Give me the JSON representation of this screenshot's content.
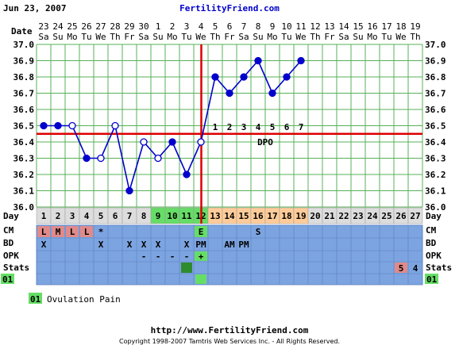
{
  "header": {
    "date": "Jun 23, 2007",
    "site": "FertilityFriend.com"
  },
  "footer": {
    "url": "http://www.FertilityFriend.com",
    "copyright": "Copyright 1998-2007 Tamtris Web Services Inc. - All Rights Reserved."
  },
  "legend": {
    "code": "01",
    "label": "Ovulation Pain"
  },
  "row_labels": {
    "date": "Date",
    "day": "Day",
    "cm": "CM",
    "bd": "BD",
    "opk": "OPK",
    "stats": "Stats",
    "code": "01"
  },
  "colors": {
    "accent_blue": "#0000cc",
    "coverline_red": "#dd0000",
    "row_blue": "#7ca4e0",
    "grid_green": "#57b157",
    "fertile_green": "#66dd66",
    "luteal_orange": "#ffcc99",
    "cm_red": "#e08a8a",
    "stats_red": "#e08a8a",
    "day_gray": "#dddddd"
  },
  "chart_data": {
    "type": "line",
    "ylim": [
      36.0,
      37.0
    ],
    "yticks": [
      "36.0",
      "36.1",
      "36.2",
      "36.3",
      "36.4",
      "36.5",
      "36.6",
      "36.7",
      "36.8",
      "36.9",
      "37.0"
    ],
    "dates": [
      "23",
      "24",
      "25",
      "26",
      "27",
      "28",
      "29",
      "30",
      "1",
      "2",
      "3",
      "4",
      "5",
      "6",
      "7",
      "8",
      "9",
      "10",
      "11",
      "12",
      "13",
      "14",
      "15",
      "16",
      "17",
      "18",
      "19"
    ],
    "weekdays": [
      "Sa",
      "Su",
      "Mo",
      "Tu",
      "We",
      "Th",
      "Fr",
      "Sa",
      "Su",
      "Mo",
      "Tu",
      "We",
      "Th",
      "Fr",
      "Sa",
      "Su",
      "Mo",
      "Tu",
      "We",
      "Th",
      "Fr",
      "Sa",
      "Su",
      "Mo",
      "Tu",
      "We",
      "Th"
    ],
    "days": [
      1,
      2,
      3,
      4,
      5,
      6,
      7,
      8,
      9,
      10,
      11,
      12,
      13,
      14,
      15,
      16,
      17,
      18,
      19,
      20,
      21,
      22,
      23,
      24,
      25,
      26,
      27
    ],
    "temps": [
      36.5,
      36.5,
      36.5,
      36.3,
      36.3,
      36.5,
      36.1,
      36.4,
      36.3,
      36.4,
      36.2,
      36.4,
      36.8,
      36.7,
      36.8,
      36.9,
      36.7,
      36.8,
      36.9
    ],
    "open_points": [
      3,
      5,
      6,
      8,
      9,
      12
    ],
    "coverline": 36.45,
    "ovulation_day": 12,
    "dpo_labels": [
      "1",
      "2",
      "3",
      "4",
      "5",
      "6",
      "7"
    ],
    "dpo_text": "DPO",
    "fertile_days": [
      9,
      10,
      11,
      12
    ],
    "luteal_days": [
      13,
      14,
      15,
      16,
      17,
      18,
      19
    ],
    "cm": [
      {
        "day": 1,
        "label": "L",
        "highlight": true
      },
      {
        "day": 2,
        "label": "M",
        "highlight": true
      },
      {
        "day": 3,
        "label": "L",
        "highlight": true
      },
      {
        "day": 4,
        "label": "L",
        "highlight": true
      },
      {
        "day": 5,
        "label": "*",
        "highlight": false
      },
      {
        "day": 12,
        "label": "E",
        "highlight": false,
        "green": true
      },
      {
        "day": 16,
        "label": "S",
        "highlight": false
      }
    ],
    "bd": [
      {
        "day": 1,
        "label": "X"
      },
      {
        "day": 5,
        "label": "X"
      },
      {
        "day": 7,
        "label": "X"
      },
      {
        "day": 8,
        "label": "X"
      },
      {
        "day": 9,
        "label": "X"
      },
      {
        "day": 11,
        "label": "X"
      },
      {
        "day": 12,
        "label": "PM"
      },
      {
        "day": 14,
        "label": "AM"
      },
      {
        "day": 15,
        "label": "PM"
      }
    ],
    "opk": [
      {
        "day": 8,
        "label": "-"
      },
      {
        "day": 9,
        "label": "-"
      },
      {
        "day": 10,
        "label": "-"
      },
      {
        "day": 11,
        "label": "-"
      },
      {
        "day": 12,
        "label": "+",
        "green": true
      }
    ],
    "stats": [
      {
        "day": 11,
        "label": "",
        "marker": "square"
      },
      {
        "day": 26,
        "label": "5",
        "highlight": true
      },
      {
        "day": 27,
        "label": "4"
      }
    ],
    "code_marks": [
      {
        "day": 12
      }
    ]
  }
}
